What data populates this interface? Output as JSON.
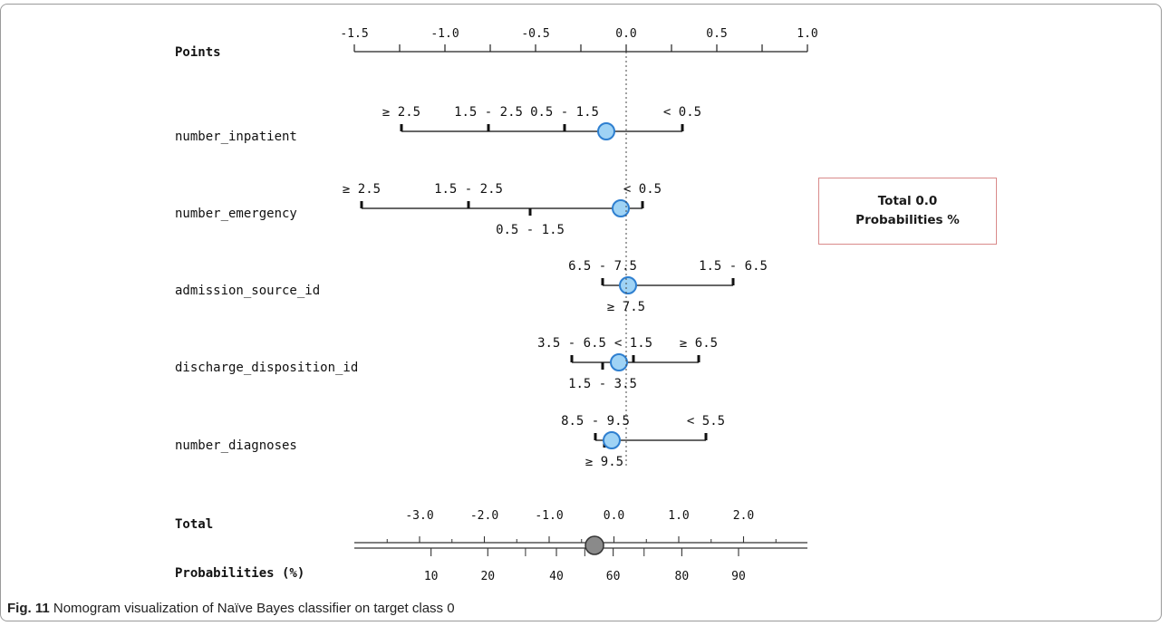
{
  "chart_data": {
    "type": "nomogram",
    "points_axis": {
      "label": "Points",
      "ticks": [
        "-1.5",
        "-1.0",
        "-0.5",
        "0.0",
        "0.5",
        "1.0"
      ],
      "tick_values": [
        -1.5,
        -1.0,
        -0.5,
        0.0,
        0.5,
        1.0
      ],
      "range": [
        -1.5,
        1.0
      ]
    },
    "variables": [
      {
        "name": "number_inpatient",
        "levels": [
          {
            "label": "≥ 2.5",
            "points": -1.24,
            "label_pos": "above"
          },
          {
            "label": "1.5 - 2.5",
            "points": -0.76,
            "label_pos": "above"
          },
          {
            "label": "0.5 - 1.5",
            "points": -0.34,
            "label_pos": "above"
          },
          {
            "label": "< 0.5",
            "points": 0.31,
            "label_pos": "above"
          }
        ],
        "marker_points": -0.11
      },
      {
        "name": "number_emergency",
        "levels": [
          {
            "label": "≥ 2.5",
            "points": -1.46,
            "label_pos": "above"
          },
          {
            "label": "1.5 - 2.5",
            "points": -0.87,
            "label_pos": "above"
          },
          {
            "label": "0.5 - 1.5",
            "points": -0.53,
            "label_pos": "below"
          },
          {
            "label": "< 0.5",
            "points": 0.09,
            "label_pos": "above"
          }
        ],
        "marker_points": -0.03
      },
      {
        "name": "admission_source_id",
        "levels": [
          {
            "label": "6.5 - 7.5",
            "points": -0.13,
            "label_pos": "above"
          },
          {
            "label": "≥ 7.5",
            "points": 0.0,
            "label_pos": "below"
          },
          {
            "label": "1.5 - 6.5",
            "points": 0.59,
            "label_pos": "above"
          }
        ],
        "marker_points": 0.01
      },
      {
        "name": "discharge_disposition_id",
        "levels": [
          {
            "label": "3.5 - 6.5",
            "points": -0.3,
            "label_pos": "above"
          },
          {
            "label": "1.5 - 3.5",
            "points": -0.13,
            "label_pos": "below"
          },
          {
            "label": "< 1.5",
            "points": 0.04,
            "label_pos": "above"
          },
          {
            "label": "≥ 6.5",
            "points": 0.4,
            "label_pos": "above"
          }
        ],
        "marker_points": -0.04
      },
      {
        "name": "number_diagnoses",
        "levels": [
          {
            "label": "8.5 - 9.5",
            "points": -0.17,
            "label_pos": "above"
          },
          {
            "label": "≥ 9.5",
            "points": -0.12,
            "label_pos": "below"
          },
          {
            "label": "< 5.5",
            "points": 0.44,
            "label_pos": "above"
          }
        ],
        "marker_points": -0.08
      }
    ],
    "total_axis": {
      "label": "Total",
      "ticks": [
        "-3.0",
        "-2.0",
        "-1.0",
        "0.0",
        "1.0",
        "2.0"
      ],
      "tick_values": [
        -3.0,
        -2.0,
        -1.0,
        0.0,
        1.0,
        2.0
      ],
      "marker_value": -0.3
    },
    "probability_axis": {
      "label": "Probabilities (%)",
      "ticks": [
        "10",
        "20",
        "40",
        "60",
        "80",
        "90"
      ],
      "tick_values": [
        10,
        20,
        40,
        60,
        80,
        90
      ]
    },
    "reference_line_points": 0.0,
    "summary": {
      "total_line": "Total 0.0",
      "probability_line": "Probabilities %"
    }
  },
  "caption": {
    "label": "Fig. 11",
    "text": " Nomogram visualization of Naïve Bayes classifier on target class 0"
  },
  "colors": {
    "marker_fill": "#9fd3f5",
    "marker_stroke": "#2e7fd0",
    "total_marker_fill": "#8a8a8a",
    "total_box_border": "#d98a8a"
  }
}
